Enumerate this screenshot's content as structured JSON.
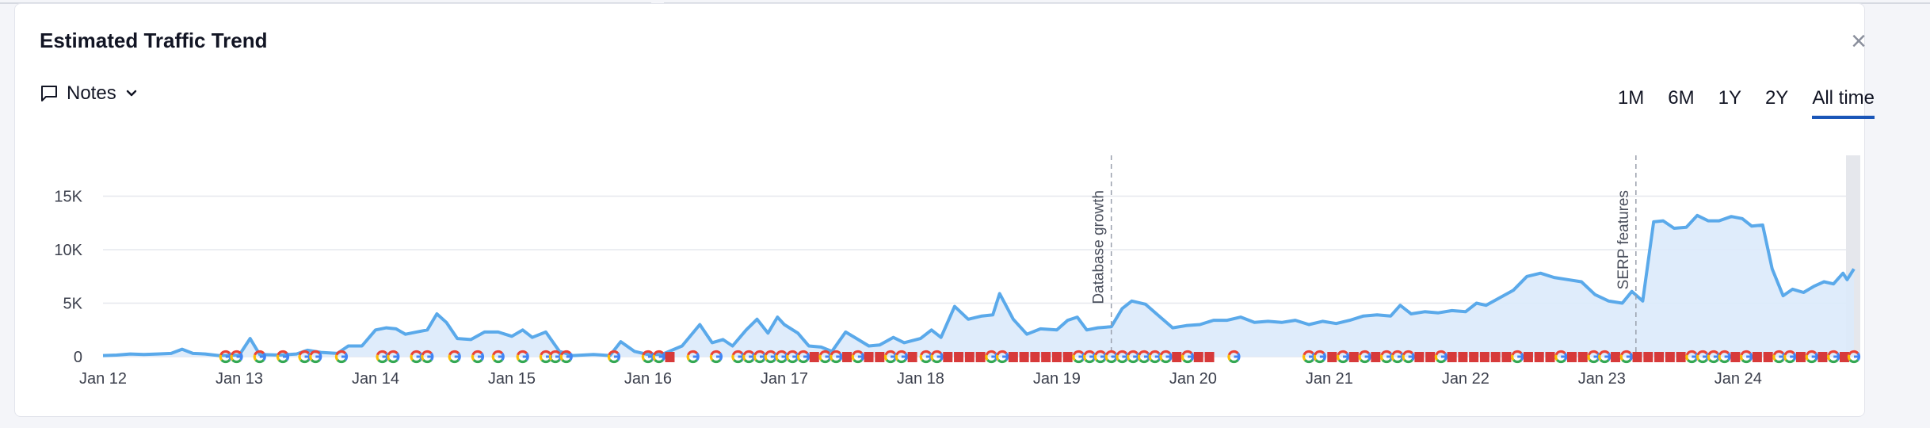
{
  "widget": {
    "title": "Estimated Traffic Trend",
    "notes_label": "Notes",
    "close_icon": "close-icon",
    "ranges": [
      "1M",
      "6M",
      "1Y",
      "2Y",
      "All time"
    ],
    "active_range": "All time"
  },
  "colors": {
    "line": "#5aa9ea",
    "area": "#dbeafb",
    "grid": "#e6e8ee",
    "marker_red": "#d73a3a",
    "active_underline": "#1a56b8"
  },
  "chart_data": {
    "type": "area",
    "xlabel": "",
    "ylabel": "",
    "y_ticks": [
      "0",
      "5K",
      "10K",
      "15K"
    ],
    "ylim": [
      0,
      20000
    ],
    "x_ticks": [
      "Jan 12",
      "Jan 13",
      "Jan 14",
      "Jan 15",
      "Jan 16",
      "Jan 17",
      "Jan 18",
      "Jan 19",
      "Jan 20",
      "Jan 21",
      "Jan 22",
      "Jan 23",
      "Jan 24"
    ],
    "x_range": [
      2012.0,
      2024.85
    ],
    "series": [
      {
        "points": [
          [
            2012.0,
            100
          ],
          [
            2012.1,
            150
          ],
          [
            2012.2,
            250
          ],
          [
            2012.3,
            200
          ],
          [
            2012.4,
            250
          ],
          [
            2012.5,
            300
          ],
          [
            2012.58,
            700
          ],
          [
            2012.66,
            300
          ],
          [
            2012.75,
            250
          ],
          [
            2012.85,
            100
          ],
          [
            2013.0,
            150
          ],
          [
            2013.08,
            1700
          ],
          [
            2013.15,
            200
          ],
          [
            2013.3,
            150
          ],
          [
            2013.42,
            250
          ],
          [
            2013.5,
            600
          ],
          [
            2013.6,
            400
          ],
          [
            2013.72,
            300
          ],
          [
            2013.8,
            1000
          ],
          [
            2013.9,
            1000
          ],
          [
            2014.0,
            2500
          ],
          [
            2014.08,
            2700
          ],
          [
            2014.15,
            2600
          ],
          [
            2014.22,
            2100
          ],
          [
            2014.3,
            2300
          ],
          [
            2014.38,
            2500
          ],
          [
            2014.45,
            4000
          ],
          [
            2014.52,
            3200
          ],
          [
            2014.6,
            1700
          ],
          [
            2014.7,
            1600
          ],
          [
            2014.8,
            2300
          ],
          [
            2014.9,
            2300
          ],
          [
            2015.0,
            1900
          ],
          [
            2015.08,
            2500
          ],
          [
            2015.15,
            1800
          ],
          [
            2015.25,
            2300
          ],
          [
            2015.35,
            500
          ],
          [
            2015.45,
            100
          ],
          [
            2015.6,
            200
          ],
          [
            2015.72,
            100
          ],
          [
            2015.8,
            1400
          ],
          [
            2015.9,
            500
          ],
          [
            2016.0,
            200
          ],
          [
            2016.1,
            200
          ],
          [
            2016.25,
            1000
          ],
          [
            2016.38,
            3000
          ],
          [
            2016.47,
            1300
          ],
          [
            2016.55,
            1600
          ],
          [
            2016.62,
            1000
          ],
          [
            2016.72,
            2500
          ],
          [
            2016.8,
            3500
          ],
          [
            2016.88,
            2200
          ],
          [
            2016.95,
            3700
          ],
          [
            2017.0,
            3000
          ],
          [
            2017.1,
            2200
          ],
          [
            2017.18,
            1000
          ],
          [
            2017.27,
            900
          ],
          [
            2017.35,
            500
          ],
          [
            2017.45,
            2300
          ],
          [
            2017.53,
            1700
          ],
          [
            2017.62,
            1000
          ],
          [
            2017.7,
            1100
          ],
          [
            2017.8,
            1800
          ],
          [
            2017.88,
            1300
          ],
          [
            2018.0,
            1700
          ],
          [
            2018.08,
            2500
          ],
          [
            2018.15,
            1800
          ],
          [
            2018.25,
            4700
          ],
          [
            2018.35,
            3500
          ],
          [
            2018.45,
            3800
          ],
          [
            2018.53,
            3900
          ],
          [
            2018.58,
            5900
          ],
          [
            2018.68,
            3500
          ],
          [
            2018.78,
            2100
          ],
          [
            2018.88,
            2600
          ],
          [
            2019.0,
            2500
          ],
          [
            2019.08,
            3400
          ],
          [
            2019.15,
            3700
          ],
          [
            2019.22,
            2500
          ],
          [
            2019.3,
            2700
          ],
          [
            2019.4,
            2800
          ],
          [
            2019.48,
            4500
          ],
          [
            2019.55,
            5200
          ],
          [
            2019.65,
            4900
          ],
          [
            2019.75,
            3800
          ],
          [
            2019.85,
            2700
          ],
          [
            2019.95,
            2900
          ],
          [
            2020.05,
            3000
          ],
          [
            2020.15,
            3400
          ],
          [
            2020.25,
            3400
          ],
          [
            2020.35,
            3700
          ],
          [
            2020.45,
            3200
          ],
          [
            2020.55,
            3300
          ],
          [
            2020.65,
            3200
          ],
          [
            2020.75,
            3400
          ],
          [
            2020.85,
            3000
          ],
          [
            2020.95,
            3300
          ],
          [
            2021.05,
            3100
          ],
          [
            2021.15,
            3400
          ],
          [
            2021.25,
            3800
          ],
          [
            2021.35,
            3900
          ],
          [
            2021.45,
            3800
          ],
          [
            2021.52,
            4800
          ],
          [
            2021.6,
            4000
          ],
          [
            2021.7,
            4200
          ],
          [
            2021.8,
            4100
          ],
          [
            2021.9,
            4300
          ],
          [
            2022.0,
            4200
          ],
          [
            2022.08,
            5000
          ],
          [
            2022.15,
            4800
          ],
          [
            2022.25,
            5500
          ],
          [
            2022.35,
            6200
          ],
          [
            2022.45,
            7500
          ],
          [
            2022.55,
            7800
          ],
          [
            2022.65,
            7400
          ],
          [
            2022.75,
            7200
          ],
          [
            2022.85,
            7000
          ],
          [
            2022.95,
            5800
          ],
          [
            2023.05,
            5200
          ],
          [
            2023.15,
            5000
          ],
          [
            2023.22,
            6100
          ],
          [
            2023.3,
            5200
          ],
          [
            2023.38,
            12600
          ],
          [
            2023.45,
            12700
          ],
          [
            2023.53,
            12000
          ],
          [
            2023.62,
            12100
          ],
          [
            2023.7,
            13200
          ],
          [
            2023.78,
            12700
          ],
          [
            2023.86,
            12700
          ],
          [
            2023.95,
            13100
          ],
          [
            2024.03,
            12900
          ],
          [
            2024.1,
            12200
          ],
          [
            2024.18,
            12300
          ],
          [
            2024.25,
            8200
          ],
          [
            2024.33,
            5700
          ],
          [
            2024.4,
            6300
          ],
          [
            2024.48,
            6000
          ],
          [
            2024.56,
            6600
          ],
          [
            2024.63,
            7000
          ],
          [
            2024.7,
            6800
          ],
          [
            2024.77,
            7800
          ],
          [
            2024.8,
            7200
          ],
          [
            2024.85,
            8200
          ]
        ]
      }
    ],
    "annotations": [
      {
        "x": 2019.4,
        "text": "Database growth"
      },
      {
        "x": 2023.25,
        "text": "SERP features"
      }
    ],
    "markers": [
      {
        "x": 2012.9,
        "k": "g"
      },
      {
        "x": 2012.98,
        "k": "g"
      },
      {
        "x": 2013.15,
        "k": "g"
      },
      {
        "x": 2013.32,
        "k": "g"
      },
      {
        "x": 2013.48,
        "k": "g"
      },
      {
        "x": 2013.56,
        "k": "g"
      },
      {
        "x": 2013.75,
        "k": "g"
      },
      {
        "x": 2014.05,
        "k": "g"
      },
      {
        "x": 2014.13,
        "k": "g"
      },
      {
        "x": 2014.3,
        "k": "g"
      },
      {
        "x": 2014.38,
        "k": "g"
      },
      {
        "x": 2014.58,
        "k": "g"
      },
      {
        "x": 2014.75,
        "k": "g"
      },
      {
        "x": 2014.9,
        "k": "g"
      },
      {
        "x": 2015.08,
        "k": "g"
      },
      {
        "x": 2015.25,
        "k": "g"
      },
      {
        "x": 2015.32,
        "k": "g"
      },
      {
        "x": 2015.4,
        "k": "g"
      },
      {
        "x": 2015.75,
        "k": "g"
      },
      {
        "x": 2016.0,
        "k": "g"
      },
      {
        "x": 2016.08,
        "k": "g"
      },
      {
        "x": 2016.16,
        "k": "r"
      },
      {
        "x": 2016.33,
        "k": "g"
      },
      {
        "x": 2016.5,
        "k": "g"
      },
      {
        "x": 2016.66,
        "k": "g"
      },
      {
        "x": 2016.74,
        "k": "g"
      },
      {
        "x": 2016.82,
        "k": "g"
      },
      {
        "x": 2016.9,
        "k": "g"
      },
      {
        "x": 2016.98,
        "k": "g"
      },
      {
        "x": 2017.06,
        "k": "g"
      },
      {
        "x": 2017.14,
        "k": "g"
      },
      {
        "x": 2017.22,
        "k": "r"
      },
      {
        "x": 2017.3,
        "k": "g"
      },
      {
        "x": 2017.38,
        "k": "g"
      },
      {
        "x": 2017.46,
        "k": "r"
      },
      {
        "x": 2017.54,
        "k": "g"
      },
      {
        "x": 2017.62,
        "k": "r"
      },
      {
        "x": 2017.7,
        "k": "r"
      },
      {
        "x": 2017.78,
        "k": "g"
      },
      {
        "x": 2017.86,
        "k": "g"
      },
      {
        "x": 2017.94,
        "k": "r"
      },
      {
        "x": 2018.04,
        "k": "g"
      },
      {
        "x": 2018.12,
        "k": "g"
      },
      {
        "x": 2018.2,
        "k": "r"
      },
      {
        "x": 2018.28,
        "k": "r"
      },
      {
        "x": 2018.36,
        "k": "r"
      },
      {
        "x": 2018.44,
        "k": "r"
      },
      {
        "x": 2018.52,
        "k": "g"
      },
      {
        "x": 2018.6,
        "k": "g"
      },
      {
        "x": 2018.68,
        "k": "r"
      },
      {
        "x": 2018.76,
        "k": "r"
      },
      {
        "x": 2018.84,
        "k": "r"
      },
      {
        "x": 2018.92,
        "k": "r"
      },
      {
        "x": 2019.0,
        "k": "r"
      },
      {
        "x": 2019.08,
        "k": "r"
      },
      {
        "x": 2019.16,
        "k": "g"
      },
      {
        "x": 2019.24,
        "k": "g"
      },
      {
        "x": 2019.32,
        "k": "g"
      },
      {
        "x": 2019.4,
        "k": "g"
      },
      {
        "x": 2019.48,
        "k": "g"
      },
      {
        "x": 2019.56,
        "k": "g"
      },
      {
        "x": 2019.64,
        "k": "g"
      },
      {
        "x": 2019.72,
        "k": "g"
      },
      {
        "x": 2019.8,
        "k": "g"
      },
      {
        "x": 2019.88,
        "k": "r"
      },
      {
        "x": 2019.96,
        "k": "g"
      },
      {
        "x": 2020.04,
        "k": "r"
      },
      {
        "x": 2020.12,
        "k": "r"
      },
      {
        "x": 2020.3,
        "k": "g"
      },
      {
        "x": 2020.85,
        "k": "g"
      },
      {
        "x": 2020.93,
        "k": "g"
      },
      {
        "x": 2021.02,
        "k": "r"
      },
      {
        "x": 2021.1,
        "k": "g"
      },
      {
        "x": 2021.18,
        "k": "r"
      },
      {
        "x": 2021.26,
        "k": "g"
      },
      {
        "x": 2021.34,
        "k": "r"
      },
      {
        "x": 2021.42,
        "k": "g"
      },
      {
        "x": 2021.5,
        "k": "g"
      },
      {
        "x": 2021.58,
        "k": "g"
      },
      {
        "x": 2021.66,
        "k": "r"
      },
      {
        "x": 2021.74,
        "k": "r"
      },
      {
        "x": 2021.82,
        "k": "g"
      },
      {
        "x": 2021.9,
        "k": "r"
      },
      {
        "x": 2021.98,
        "k": "r"
      },
      {
        "x": 2022.06,
        "k": "r"
      },
      {
        "x": 2022.14,
        "k": "r"
      },
      {
        "x": 2022.22,
        "k": "r"
      },
      {
        "x": 2022.3,
        "k": "r"
      },
      {
        "x": 2022.38,
        "k": "g"
      },
      {
        "x": 2022.46,
        "k": "r"
      },
      {
        "x": 2022.54,
        "k": "r"
      },
      {
        "x": 2022.62,
        "k": "r"
      },
      {
        "x": 2022.7,
        "k": "g"
      },
      {
        "x": 2022.78,
        "k": "r"
      },
      {
        "x": 2022.86,
        "k": "r"
      },
      {
        "x": 2022.94,
        "k": "g"
      },
      {
        "x": 2023.02,
        "k": "g"
      },
      {
        "x": 2023.1,
        "k": "r"
      },
      {
        "x": 2023.18,
        "k": "g"
      },
      {
        "x": 2023.26,
        "k": "r"
      },
      {
        "x": 2023.34,
        "k": "r"
      },
      {
        "x": 2023.42,
        "k": "r"
      },
      {
        "x": 2023.5,
        "k": "r"
      },
      {
        "x": 2023.58,
        "k": "r"
      },
      {
        "x": 2023.66,
        "k": "g"
      },
      {
        "x": 2023.74,
        "k": "g"
      },
      {
        "x": 2023.82,
        "k": "g"
      },
      {
        "x": 2023.9,
        "k": "g"
      },
      {
        "x": 2023.98,
        "k": "r"
      },
      {
        "x": 2024.06,
        "k": "g"
      },
      {
        "x": 2024.14,
        "k": "r"
      },
      {
        "x": 2024.22,
        "k": "r"
      },
      {
        "x": 2024.3,
        "k": "g"
      },
      {
        "x": 2024.38,
        "k": "g"
      },
      {
        "x": 2024.46,
        "k": "r"
      },
      {
        "x": 2024.54,
        "k": "g"
      },
      {
        "x": 2024.62,
        "k": "r"
      },
      {
        "x": 2024.7,
        "k": "g"
      },
      {
        "x": 2024.78,
        "k": "r"
      },
      {
        "x": 2024.85,
        "k": "g"
      }
    ],
    "grid": true,
    "legend": "none"
  }
}
